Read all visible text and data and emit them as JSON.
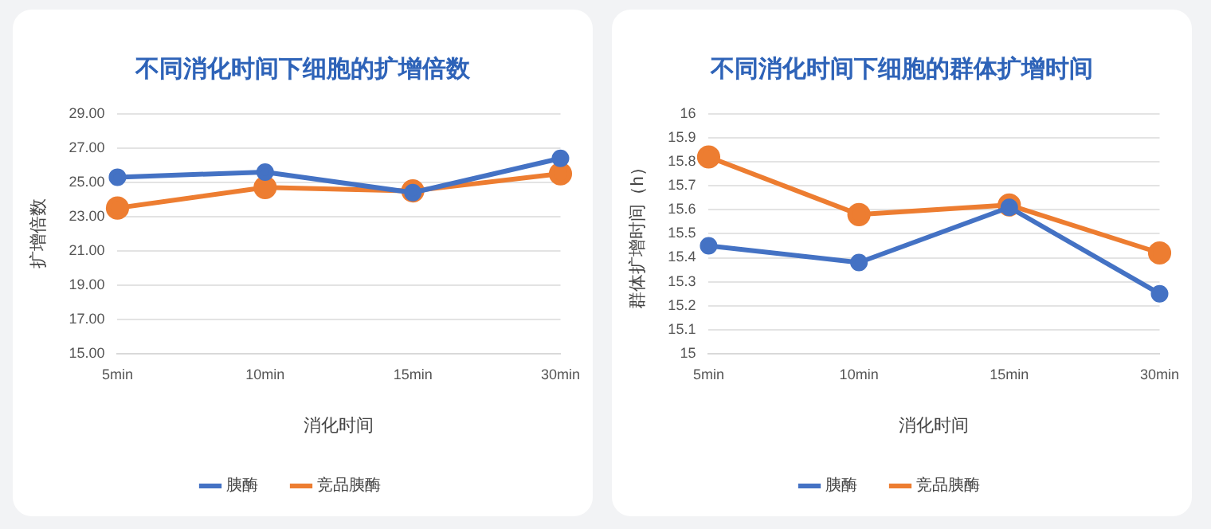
{
  "chart_data": [
    {
      "type": "line",
      "title": "不同消化时间下细胞的扩增倍数",
      "xlabel": "消化时间",
      "ylabel": "扩增倍数",
      "categories": [
        "5min",
        "10min",
        "15min",
        "30min"
      ],
      "series": [
        {
          "name": "胰酶",
          "color": "#4472c4",
          "values": [
            25.3,
            25.6,
            24.4,
            26.4
          ]
        },
        {
          "name": "竞品胰酶",
          "color": "#ed7d31",
          "values": [
            23.5,
            24.7,
            24.5,
            25.5
          ]
        }
      ],
      "ylim": [
        15,
        29
      ],
      "yticks": [
        {
          "value": 15,
          "label": "15.00"
        },
        {
          "value": 17,
          "label": "17.00"
        },
        {
          "value": 19,
          "label": "19.00"
        },
        {
          "value": 21,
          "label": "21.00"
        },
        {
          "value": 23,
          "label": "23.00"
        },
        {
          "value": 25,
          "label": "25.00"
        },
        {
          "value": 27,
          "label": "27.00"
        },
        {
          "value": 29,
          "label": "29.00"
        }
      ],
      "grid": "y",
      "legend": "bottom",
      "marker": "circle",
      "line_style": "solid"
    },
    {
      "type": "line",
      "title": "不同消化时间下细胞的群体扩增时间",
      "xlabel": "消化时间",
      "ylabel": "群体扩增时间（h）",
      "categories": [
        "5min",
        "10min",
        "15min",
        "30min"
      ],
      "series": [
        {
          "name": "胰酶",
          "color": "#4472c4",
          "values": [
            15.45,
            15.38,
            15.61,
            15.25
          ]
        },
        {
          "name": "竞品胰酶",
          "color": "#ed7d31",
          "values": [
            15.82,
            15.58,
            15.62,
            15.42
          ]
        }
      ],
      "ylim": [
        15,
        16
      ],
      "yticks": [
        15,
        15.1,
        15.2,
        15.3,
        15.4,
        15.5,
        15.6,
        15.7,
        15.8,
        15.9,
        16
      ],
      "grid": "y",
      "legend": "bottom",
      "marker": "circle",
      "line_style": "solid"
    }
  ]
}
